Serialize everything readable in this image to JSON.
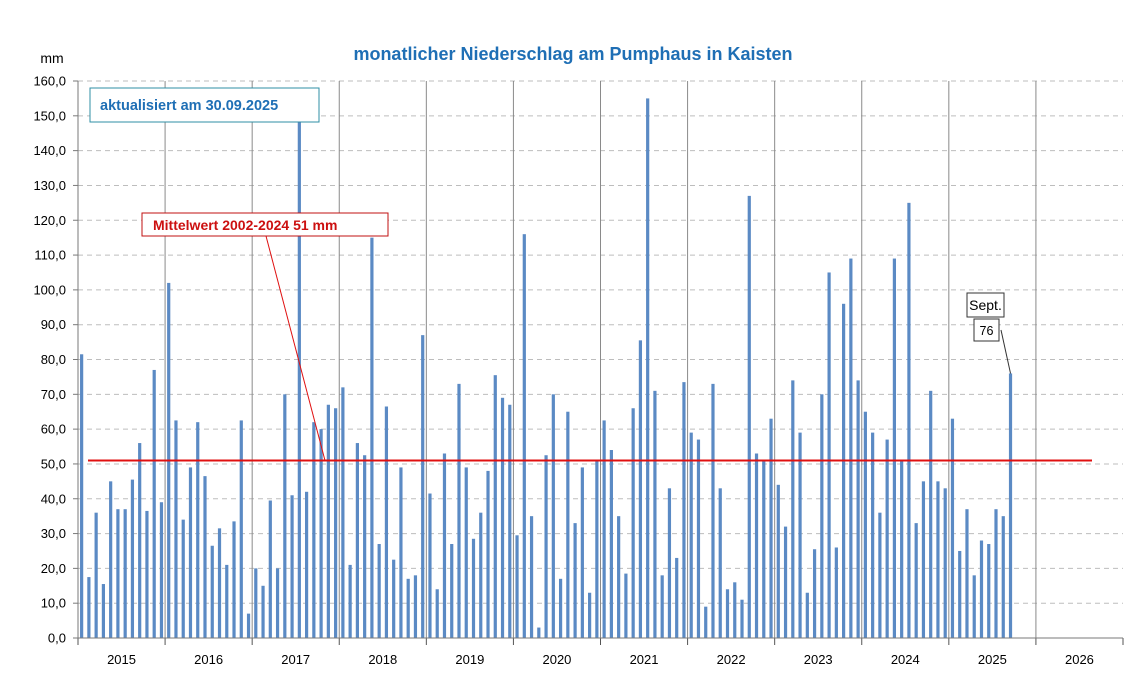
{
  "chart_data": {
    "type": "bar",
    "title": "monatlicher Niederschlag am Pumphaus in Kaisten",
    "ylabel": "mm",
    "update_note": "aktualisiert am 30.09.2025",
    "mean_label": "Mittelwert 2002-2024  51 mm",
    "mean_value": 51,
    "ylim": [
      0,
      160
    ],
    "yticks": [
      0,
      10,
      20,
      30,
      40,
      50,
      60,
      70,
      80,
      90,
      100,
      110,
      120,
      130,
      140,
      150,
      160
    ],
    "ytick_labels": [
      "0,0",
      "10,0",
      "20,0",
      "30,0",
      "40,0",
      "50,0",
      "60,0",
      "70,0",
      "80,0",
      "90,0",
      "100,0",
      "110,0",
      "120,0",
      "130,0",
      "140,0",
      "150,0",
      "160,0"
    ],
    "years": [
      "2015",
      "2016",
      "2017",
      "2018",
      "2019",
      "2020",
      "2021",
      "2022",
      "2023",
      "2024",
      "2025",
      "2026"
    ],
    "months_per_year": 12,
    "series": [
      {
        "values": [
          81.5,
          17.5,
          36,
          15.5,
          45,
          37,
          37,
          45.5,
          56,
          36.5,
          77,
          39,
          102,
          62.5,
          34,
          49,
          62,
          46.5,
          26.5,
          31.5,
          21,
          33.5,
          62.5,
          7,
          20,
          15,
          39.5,
          20,
          70,
          41,
          149,
          42,
          62,
          60,
          67,
          66,
          72,
          21,
          56,
          52.5,
          115,
          27,
          66.5,
          22.5,
          49,
          17,
          18,
          87,
          41.5,
          14,
          53,
          27,
          73,
          49,
          28.5,
          36,
          48,
          75.5,
          69,
          67,
          29.5,
          116,
          35,
          3,
          52.5,
          70,
          17,
          65,
          33,
          49,
          13,
          51,
          62.5,
          54,
          35,
          18.5,
          66,
          85.5,
          155,
          71,
          18,
          43,
          23,
          73.5,
          59,
          57,
          9,
          73,
          43,
          14,
          16,
          11,
          127,
          53,
          51,
          63,
          44,
          32,
          74,
          59,
          13,
          25.5,
          70,
          105,
          26,
          96,
          109,
          74,
          65,
          59,
          36,
          57,
          109,
          51,
          125,
          33,
          45,
          71,
          45,
          43,
          63,
          25,
          37,
          18,
          28,
          27,
          37,
          35,
          76
        ]
      }
    ],
    "last_point_callout": {
      "month": "Sept.",
      "value": "76"
    },
    "grid": true,
    "legend": "none"
  },
  "colors": {
    "bar": "#5b8ac4",
    "mean_line": "#e01010",
    "title": "#1f6fb5",
    "note_text": "#1f6fb5",
    "note_border": "#2f8fa5",
    "mean_label_text": "#cc1010",
    "mean_label_border": "#c01010",
    "grid": "#bdbdbd"
  }
}
